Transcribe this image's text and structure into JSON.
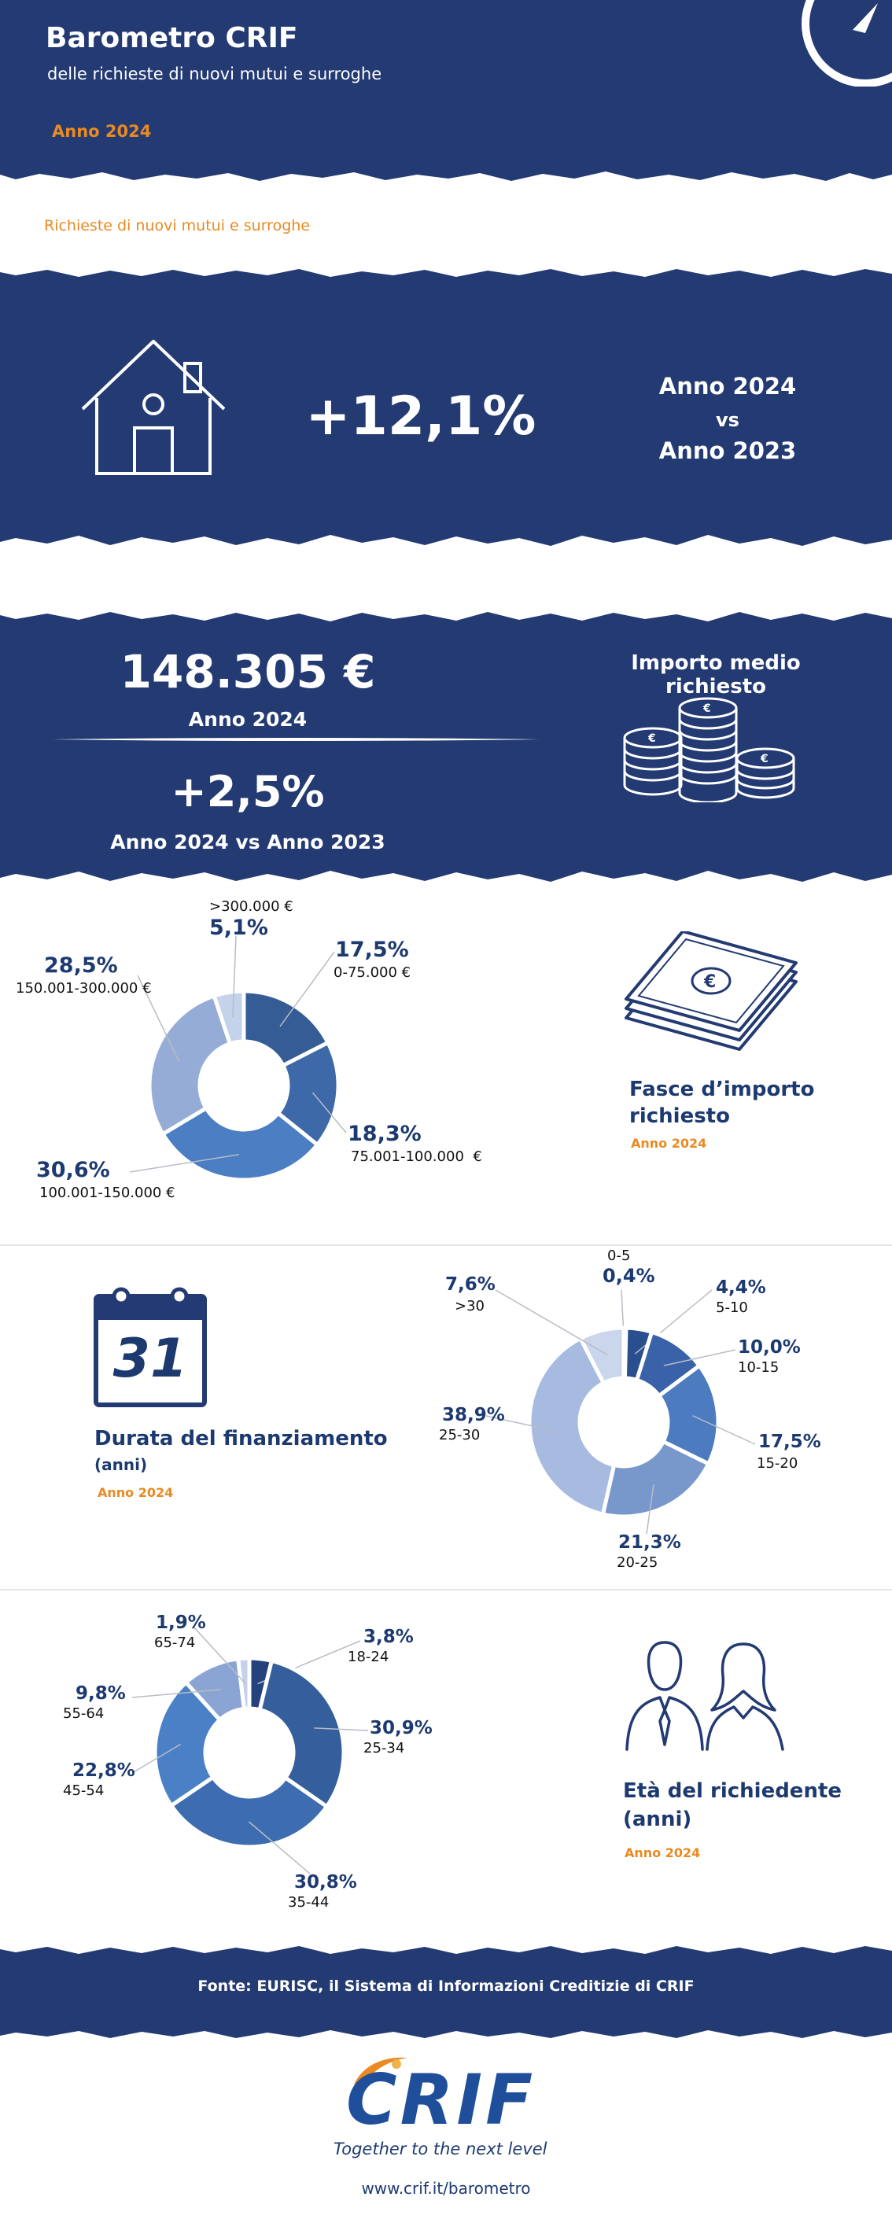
{
  "header": {
    "title": "Barometro CRIF",
    "subtitle": "delle richieste di nuovi mutui e surroghe",
    "year": "Anno 2024"
  },
  "section_label": "Richieste di nuovi mutui e surroghe",
  "requests": {
    "change": "+12,1%",
    "comparison_line1": "Anno 2024",
    "comparison_line2": "vs",
    "comparison_line3": "Anno 2023"
  },
  "amount": {
    "value": "148.305 €",
    "year": "Anno 2024",
    "change": "+2,5%",
    "comparison": "Anno 2024 vs Anno 2023",
    "label": "Importo medio richiesto"
  },
  "fasce": {
    "title_line1": "Fasce d’importo",
    "title_line2": "richiesto",
    "year": "Anno 2024"
  },
  "durata": {
    "title": "Durata del finanziamento",
    "unit": "(anni)",
    "year": "Anno 2024",
    "calendar_day": "31"
  },
  "eta": {
    "title_line1": "Età del richiedente",
    "title_line2": "(anni)",
    "year": "Anno 2024"
  },
  "footer": {
    "source": "Fonte: EURISC, il Sistema di Informazioni Creditizie di CRIF",
    "logo_text": "CRIF",
    "tagline": "Together to the next level",
    "url": "www.crif.it/barometro"
  },
  "colors": {
    "navy": "#233a72",
    "orange": "#e98a22",
    "label_blue": "#1d3a70"
  },
  "chart_data": [
    {
      "type": "pie",
      "title": "Fasce d’importo richiesto",
      "categories": [
        "0-75.000 €",
        "75.001-100.000  €",
        "100.001-150.000 €",
        "150.001-300.000 €",
        ">300.000 €"
      ],
      "values": [
        17.5,
        18.3,
        30.6,
        28.5,
        5.1
      ],
      "value_labels": [
        "17,5%",
        "18,3%",
        "30,6%",
        "28,5%",
        "5,1%"
      ],
      "colors": [
        "#355c94",
        "#3d69a8",
        "#4b7ec2",
        "#95add6",
        "#c4d2ea"
      ]
    },
    {
      "type": "pie",
      "title": "Durata del finanziamento (anni)",
      "categories": [
        "0-5",
        "5-10",
        "10-15",
        "15-20",
        "20-25",
        "25-30",
        ">30"
      ],
      "values": [
        0.4,
        4.4,
        10.0,
        17.5,
        21.3,
        38.9,
        7.6
      ],
      "value_labels": [
        "0,4%",
        "4,4%",
        "10,0%",
        "17,5%",
        "21,3%",
        "38,9%",
        "7,6%"
      ],
      "colors": [
        "#1f3f78",
        "#2a4f8f",
        "#3962a8",
        "#4c7bc0",
        "#7898cc",
        "#a6bbdf",
        "#c9d6ec"
      ]
    },
    {
      "type": "pie",
      "title": "Età del richiedente (anni)",
      "categories": [
        "18-24",
        "25-34",
        "35-44",
        "45-54",
        "55-64",
        "65-74"
      ],
      "values": [
        3.8,
        30.9,
        30.8,
        22.8,
        9.8,
        1.9
      ],
      "value_labels": [
        "3,8%",
        "30,9%",
        "30,8%",
        "22,8%",
        "9,8%",
        "1,9%"
      ],
      "colors": [
        "#24427c",
        "#355f9c",
        "#3d6cb0",
        "#4a80c6",
        "#8aa5d4",
        "#c4d1ea"
      ]
    }
  ]
}
